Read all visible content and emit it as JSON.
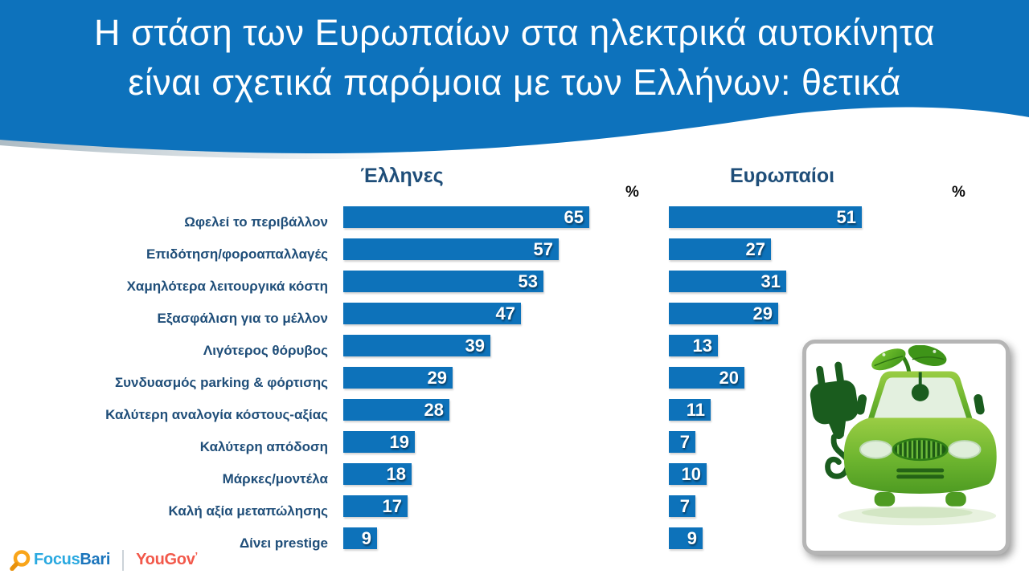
{
  "header": {
    "title_line1": "Η στάση των Ευρωπαίων στα ηλεκτρικά αυτοκίνητα",
    "title_line2": "είναι σχετικά παρόμοια με των Ελλήνων: θετικά",
    "background_color": "#0D72BC",
    "text_color": "#FFFFFF"
  },
  "chart_data": {
    "type": "bar",
    "orientation": "horizontal",
    "unit": "%",
    "categories": [
      "Ωφελεί το περιβάλλον",
      "Επιδότηση/φοροαπαλλαγές",
      "Χαμηλότερα λειτουργικά κόστη",
      "Εξασφάλιση για το μέλλον",
      "Λιγότερος θόρυβος",
      "Συνδυασμός parking & φόρτισης",
      "Καλύτερη αναλογία κόστους-αξίας",
      "Καλύτερη απόδοση",
      "Μάρκες/μοντέλα",
      "Καλή αξία μεταπώλησης",
      "Δίνει prestige"
    ],
    "series": [
      {
        "name": "Έλληνες",
        "values": [
          65,
          57,
          53,
          47,
          39,
          29,
          28,
          19,
          18,
          17,
          9
        ]
      },
      {
        "name": "Ευρωπαίοι",
        "values": [
          51,
          27,
          31,
          29,
          13,
          20,
          11,
          7,
          10,
          7,
          9
        ]
      }
    ],
    "xlim": [
      0,
      70
    ],
    "grid": false,
    "legend_position": "column-titles",
    "bar_color": "#0D72BA",
    "value_label_color": "#FFFFFF",
    "category_label_color": "#1F4E79"
  },
  "illustration": {
    "name": "green-electric-car-with-plug-icon"
  },
  "footer": {
    "focusbari_prefix": "Focus",
    "focusbari_suffix": "Bari",
    "yougov": "YouGov",
    "yougov_mark": "’",
    "focusbari_colors": [
      "#2AA9E0",
      "#1B75BC"
    ],
    "yougov_color": "#F2594B"
  }
}
